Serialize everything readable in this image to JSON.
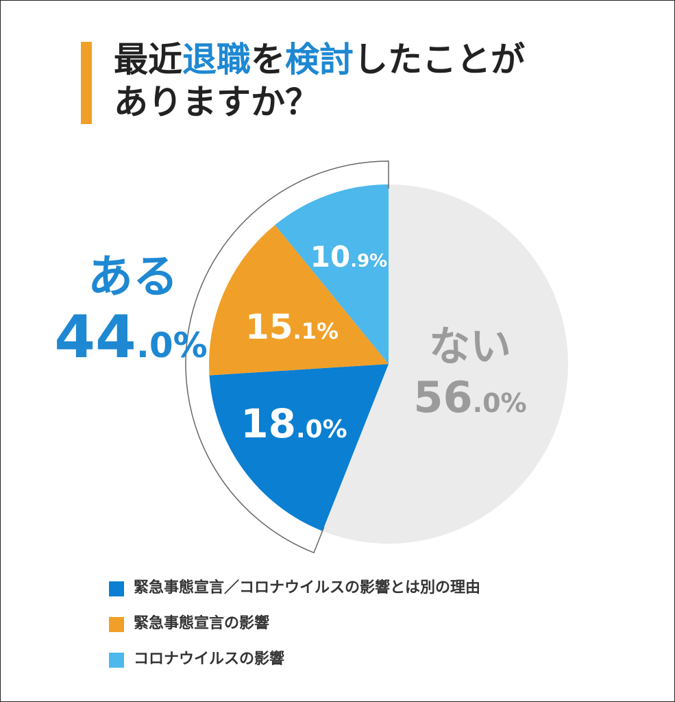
{
  "title": {
    "line1": [
      "最近",
      "退職",
      "を",
      "検討",
      "したことが"
    ],
    "line2": "ありますか？"
  },
  "chart_data": {
    "type": "pie",
    "slices": [
      {
        "label": "ない",
        "value": 56.0,
        "int": "56",
        "dec": ".0%",
        "color": "#ebebeb",
        "text_color": "#9b9b9b"
      },
      {
        "label": "緊急事態宣言／コロナウイルスの影響とは別の理由",
        "value": 18.0,
        "int": "18",
        "dec": ".0%",
        "color": "#0b7fd1",
        "text_color": "#ffffff"
      },
      {
        "label": "緊急事態宣言の影響",
        "value": 15.1,
        "int": "15",
        "dec": ".1%",
        "color": "#f0a028",
        "text_color": "#ffffff"
      },
      {
        "label": "コロナウイルスの影響",
        "value": 10.9,
        "int": "10",
        "dec": ".9%",
        "color": "#4db8eb",
        "text_color": "#ffffff"
      }
    ],
    "group": {
      "label": "ある",
      "int": "44",
      "dec": ".0%",
      "value": 44.0,
      "color": "#1e88d2"
    },
    "legend": [
      {
        "label": "緊急事態宣言／コロナウイルスの影響とは別の理由",
        "color": "#0b7fd1"
      },
      {
        "label": "緊急事態宣言の影響",
        "color": "#f0a028"
      },
      {
        "label": "コロナウイルスの影響",
        "color": "#4db8eb"
      }
    ]
  }
}
